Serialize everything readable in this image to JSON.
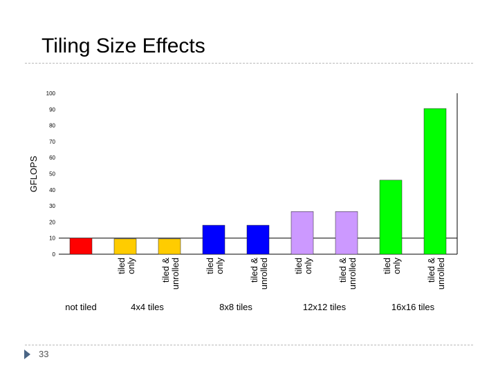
{
  "slide": {
    "title": "Tiling Size Effects",
    "slide_number": "33"
  },
  "chart_data": {
    "type": "bar",
    "title": "",
    "xlabel": "",
    "ylabel": "GFLOPS",
    "ylim": [
      0,
      100
    ],
    "yticks": [
      0,
      10,
      20,
      30,
      40,
      50,
      60,
      70,
      80,
      90,
      100
    ],
    "grid": false,
    "bars": [
      {
        "label": "",
        "value": 10,
        "color": "#ff0000"
      },
      {
        "label": "tiled only",
        "value": 9.5,
        "color": "#ffcc00"
      },
      {
        "label": "tiled & unrolled",
        "value": 9.5,
        "color": "#ffcc00"
      },
      {
        "label": "tiled only",
        "value": 18,
        "color": "#0000ff"
      },
      {
        "label": "tiled & unrolled",
        "value": 18,
        "color": "#0000ff"
      },
      {
        "label": "tiled only",
        "value": 26.5,
        "color": "#cc99ff"
      },
      {
        "label": "tiled & unrolled",
        "value": 26.5,
        "color": "#cc99ff"
      },
      {
        "label": "tiled only",
        "value": 46,
        "color": "#00ff00"
      },
      {
        "label": "tiled & unrolled",
        "value": 90.5,
        "color": "#00ff00"
      }
    ],
    "groups": [
      {
        "label": "not tiled",
        "bars": [
          0
        ]
      },
      {
        "label": "4x4 tiles",
        "bars": [
          1,
          2
        ]
      },
      {
        "label": "8x8 tiles",
        "bars": [
          3,
          4
        ]
      },
      {
        "label": "12x12 tiles",
        "bars": [
          5,
          6
        ]
      },
      {
        "label": "16x16 tiles",
        "bars": [
          7,
          8
        ]
      }
    ],
    "reference_line": {
      "value": 10
    }
  }
}
